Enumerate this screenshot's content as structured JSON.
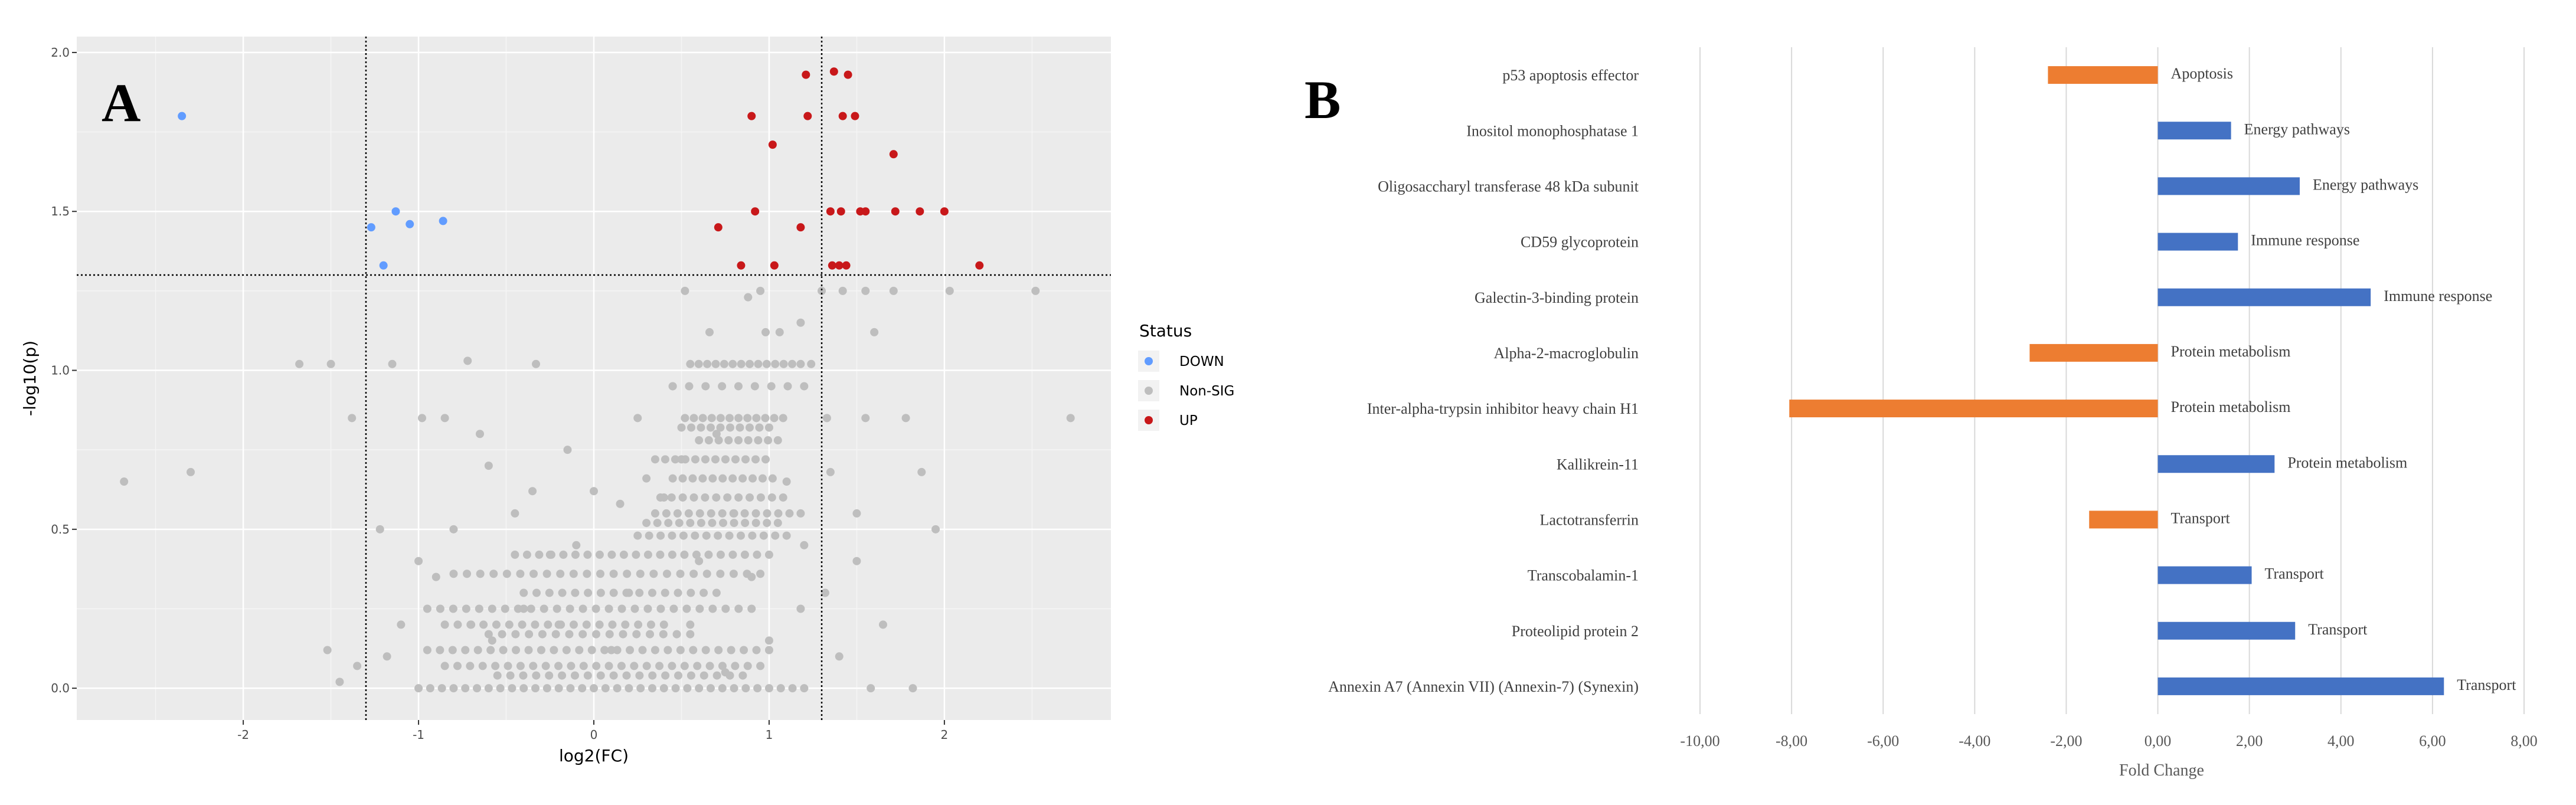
{
  "panels": {
    "a_label": "A",
    "b_label": "B"
  },
  "chart_data": [
    {
      "type": "scatter",
      "panel": "A",
      "title": "",
      "xlabel": "log2(FC)",
      "ylabel": "-log10(p)",
      "xlim": [
        -2.95,
        2.95
      ],
      "ylim": [
        -0.1,
        2.05
      ],
      "x_ticks": [
        -2,
        -1,
        0,
        1,
        2
      ],
      "x_tick_labels": [
        "-2",
        "-1",
        "0",
        "1",
        "2"
      ],
      "y_ticks": [
        0.0,
        0.5,
        1.0,
        1.5,
        2.0
      ],
      "y_tick_labels": [
        "0.0",
        "0.5",
        "1.0",
        "1.5",
        "2.0"
      ],
      "grid": true,
      "threshold_lines": {
        "x": [
          -1.3,
          1.3
        ],
        "y": 1.3
      },
      "legend": {
        "title": "Status",
        "position": "right",
        "entries": [
          {
            "label": "DOWN",
            "color": "#619cff"
          },
          {
            "label": "Non-SIG",
            "color": "#bebebe"
          },
          {
            "label": "UP",
            "color": "#c8181a"
          }
        ]
      },
      "series": [
        {
          "name": "DOWN",
          "points": [
            [
              -2.35,
              1.8
            ],
            [
              -1.27,
              1.45
            ],
            [
              -1.13,
              1.5
            ],
            [
              -1.05,
              1.46
            ],
            [
              -0.86,
              1.47
            ],
            [
              -1.2,
              1.33
            ]
          ]
        },
        {
          "name": "UP",
          "points": [
            [
              1.21,
              1.93
            ],
            [
              1.37,
              1.94
            ],
            [
              1.45,
              1.93
            ],
            [
              0.9,
              1.8
            ],
            [
              1.22,
              1.8
            ],
            [
              1.42,
              1.8
            ],
            [
              1.49,
              1.8
            ],
            [
              1.02,
              1.71
            ],
            [
              1.71,
              1.68
            ],
            [
              0.71,
              1.45
            ],
            [
              0.92,
              1.5
            ],
            [
              1.18,
              1.45
            ],
            [
              1.35,
              1.5
            ],
            [
              1.41,
              1.5
            ],
            [
              1.52,
              1.5
            ],
            [
              1.55,
              1.5
            ],
            [
              1.72,
              1.5
            ],
            [
              1.86,
              1.5
            ],
            [
              2.0,
              1.5
            ],
            [
              0.84,
              1.33
            ],
            [
              1.03,
              1.33
            ],
            [
              1.36,
              1.33
            ],
            [
              1.4,
              1.33
            ],
            [
              1.44,
              1.33
            ],
            [
              2.2,
              1.33
            ]
          ]
        },
        {
          "name": "Non-SIG",
          "points": [
            [
              -2.68,
              0.65
            ],
            [
              -2.3,
              0.68
            ],
            [
              -1.68,
              1.02
            ],
            [
              -1.5,
              1.02
            ],
            [
              -1.38,
              0.85
            ],
            [
              -1.52,
              0.12
            ],
            [
              -1.45,
              0.02
            ],
            [
              -1.35,
              0.07
            ],
            [
              -1.15,
              1.02
            ],
            [
              -0.98,
              0.85
            ],
            [
              -0.72,
              1.03
            ],
            [
              -0.33,
              1.02
            ],
            [
              -1.22,
              0.5
            ],
            [
              -1.1,
              0.2
            ],
            [
              -1.18,
              0.1
            ],
            [
              0.52,
              1.25
            ],
            [
              0.88,
              1.23
            ],
            [
              0.95,
              1.25
            ],
            [
              1.06,
              1.12
            ],
            [
              1.3,
              1.25
            ],
            [
              1.42,
              1.25
            ],
            [
              1.55,
              1.25
            ],
            [
              1.71,
              1.25
            ],
            [
              2.03,
              1.25
            ],
            [
              2.52,
              1.25
            ],
            [
              1.18,
              1.15
            ],
            [
              0.66,
              1.12
            ],
            [
              0.98,
              1.12
            ],
            [
              1.6,
              1.12
            ],
            [
              1.24,
              1.02
            ],
            [
              1.33,
              0.85
            ],
            [
              1.55,
              0.85
            ],
            [
              1.78,
              0.85
            ],
            [
              1.87,
              0.68
            ],
            [
              1.95,
              0.5
            ],
            [
              2.72,
              0.85
            ],
            [
              1.5,
              0.55
            ],
            [
              1.35,
              0.68
            ],
            [
              1.32,
              0.3
            ],
            [
              1.5,
              0.4
            ],
            [
              1.65,
              0.2
            ],
            [
              1.58,
              0.0
            ],
            [
              1.82,
              0.0
            ],
            [
              1.4,
              0.1
            ],
            [
              0.45,
              0.95
            ],
            [
              0.5,
              0.72
            ],
            [
              0.3,
              0.66
            ],
            [
              0.4,
              0.6
            ],
            [
              0.15,
              0.58
            ],
            [
              0.0,
              0.62
            ],
            [
              -0.1,
              0.45
            ],
            [
              -0.35,
              0.62
            ],
            [
              -0.6,
              0.7
            ],
            [
              -0.45,
              0.55
            ],
            [
              -0.25,
              0.42
            ],
            [
              -0.8,
              0.5
            ],
            [
              -1.0,
              0.4
            ],
            [
              -0.9,
              0.35
            ],
            [
              -0.7,
              0.2
            ],
            [
              -0.58,
              0.15
            ],
            [
              -0.4,
              0.25
            ],
            [
              -0.85,
              0.85
            ],
            [
              -0.65,
              0.8
            ],
            [
              -0.15,
              0.75
            ],
            [
              0.25,
              0.85
            ],
            [
              0.7,
              0.8
            ],
            [
              0.8,
              0.55
            ],
            [
              0.9,
              0.35
            ],
            [
              1.2,
              0.45
            ],
            [
              1.1,
              0.65
            ],
            [
              0.6,
              0.4
            ],
            [
              0.2,
              0.3
            ],
            [
              -0.2,
              0.2
            ],
            [
              0.1,
              0.12
            ],
            [
              0.55,
              0.2
            ],
            [
              1.0,
              0.15
            ],
            [
              1.18,
              0.25
            ],
            [
              0.75,
              0.05
            ]
          ]
        }
      ],
      "non_sig_bands": [
        {
          "x": [
            0.55,
            1.18
          ],
          "y": 1.02,
          "n": 14
        },
        {
          "x": [
            0.45,
            1.2
          ],
          "y": 0.95,
          "n": 9
        },
        {
          "x": [
            0.52,
            1.08
          ],
          "y": 0.85,
          "n": 12
        },
        {
          "x": [
            0.5,
            1.0
          ],
          "y": 0.82,
          "n": 10
        },
        {
          "x": [
            0.6,
            1.05
          ],
          "y": 0.78,
          "n": 9
        },
        {
          "x": [
            0.35,
            0.98
          ],
          "y": 0.72,
          "n": 12
        },
        {
          "x": [
            0.45,
            1.02
          ],
          "y": 0.66,
          "n": 11
        },
        {
          "x": [
            0.38,
            1.08
          ],
          "y": 0.6,
          "n": 12
        },
        {
          "x": [
            0.35,
            1.18
          ],
          "y": 0.55,
          "n": 14
        },
        {
          "x": [
            0.3,
            1.05
          ],
          "y": 0.52,
          "n": 13
        },
        {
          "x": [
            0.25,
            1.1
          ],
          "y": 0.48,
          "n": 14
        },
        {
          "x": [
            -0.45,
            1.0
          ],
          "y": 0.42,
          "n": 22
        },
        {
          "x": [
            -0.8,
            0.95
          ],
          "y": 0.36,
          "n": 24
        },
        {
          "x": [
            -0.4,
            0.7
          ],
          "y": 0.3,
          "n": 16
        },
        {
          "x": [
            -0.95,
            0.9
          ],
          "y": 0.25,
          "n": 26
        },
        {
          "x": [
            -0.85,
            0.4
          ],
          "y": 0.2,
          "n": 18
        },
        {
          "x": [
            -0.6,
            0.55
          ],
          "y": 0.17,
          "n": 16
        },
        {
          "x": [
            -0.95,
            1.0
          ],
          "y": 0.12,
          "n": 28
        },
        {
          "x": [
            -0.85,
            0.95
          ],
          "y": 0.07,
          "n": 26
        },
        {
          "x": [
            -0.55,
            0.85
          ],
          "y": 0.04,
          "n": 20
        },
        {
          "x": [
            -1.0,
            1.2
          ],
          "y": 0.0,
          "n": 34
        }
      ]
    },
    {
      "type": "bar",
      "orientation": "horizontal",
      "panel": "B",
      "title": "",
      "xlabel": "Fold Change",
      "ylabel": "",
      "xlim": [
        -10,
        8
      ],
      "x_ticks": [
        -10,
        -8,
        -6,
        -4,
        -2,
        0,
        2,
        4,
        6,
        8
      ],
      "x_tick_labels": [
        "-10,00",
        "-8,00",
        "-6,00",
        "-4,00",
        "-2,00",
        "0,00",
        "2,00",
        "4,00",
        "6,00",
        "8,00"
      ],
      "grid": true,
      "colors": {
        "positive": "#4472c4",
        "negative": "#ed7d31"
      },
      "categories": [
        "p53 apoptosis effector",
        "Inositol monophosphatase 1",
        "Oligosaccharyl transferase 48 kDa subunit",
        "CD59 glycoprotein",
        "Galectin-3-binding protein",
        "Alpha-2-macroglobulin",
        "Inter-alpha-trypsin inhibitor heavy chain H1",
        "Kallikrein-11",
        "Lactotransferrin",
        "Transcobalamin-1",
        "Proteolipid protein 2",
        "Annexin A7 (Annexin VII) (Annexin-7) (Synexin)"
      ],
      "values": [
        -2.4,
        1.6,
        3.1,
        1.75,
        4.65,
        -2.8,
        -8.05,
        2.55,
        -1.5,
        2.05,
        3.0,
        6.25
      ],
      "bar_labels": [
        "Apoptosis",
        "Energy pathways",
        "Energy pathways",
        "Immune response",
        "Immune response",
        "Protein metabolism",
        "Protein metabolism",
        "Protein metabolism",
        "Transport",
        "Transport",
        "Transport",
        "Transport"
      ]
    }
  ]
}
